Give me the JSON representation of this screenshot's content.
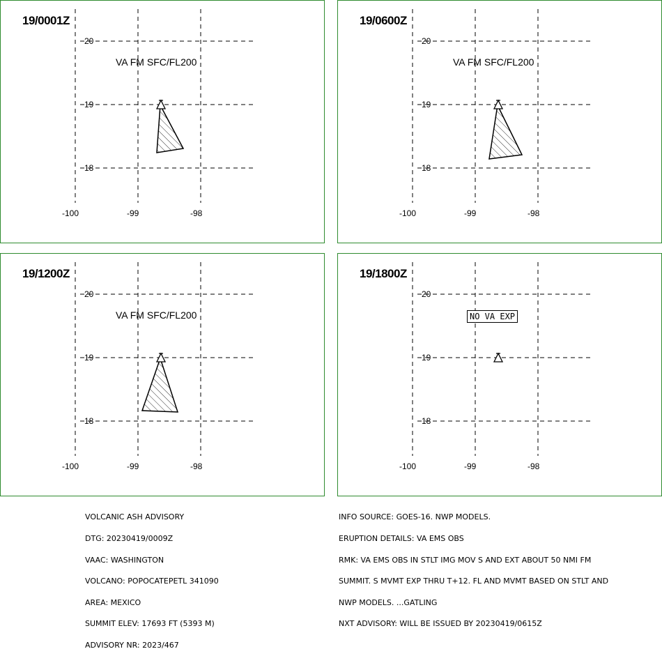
{
  "panels": [
    {
      "title": "19/0001Z",
      "level": "VA FM SFC/FL200"
    },
    {
      "title": "19/0600Z",
      "level": "VA FM SFC/FL200"
    },
    {
      "title": "19/1200Z",
      "level": "VA FM SFC/FL200"
    },
    {
      "title": "19/1800Z",
      "status": "NO VA EXP"
    }
  ],
  "axes": {
    "lat_labels": [
      "20",
      "19",
      "18"
    ],
    "lon_labels": [
      "-100",
      "-99",
      "-98"
    ]
  },
  "advisory": {
    "lines": [
      "VOLCANIC ASH ADVISORY",
      "DTG: 20230419/0009Z",
      "VAAC: WASHINGTON",
      "VOLCANO: POPOCATEPETL 341090",
      "AREA: MEXICO",
      "SUMMIT ELEV: 17693 FT (5393 M)",
      "ADVISORY NR: 2023/467"
    ]
  },
  "info": {
    "lines": [
      "INFO SOURCE: GOES-16. NWP MODELS.",
      "ERUPTION DETAILS: VA EMS OBS",
      "RMK: VA EMS OBS IN STLT IMG MOV S AND EXT ABOUT 50 NMI FM",
      "SUMMIT. S MVMT EXP THRU T+12. FL AND MVMT BASED ON STLT AND",
      "NWP MODELS. ...GATLING",
      "NXT ADVISORY: WILL BE ISSUED BY 20230419/0615Z"
    ]
  },
  "colors": {
    "panel_border": "#2e8b2e",
    "ink": "#000000"
  }
}
